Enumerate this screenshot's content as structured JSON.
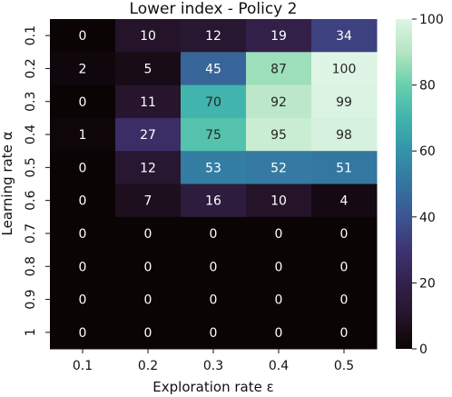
{
  "chart_data": {
    "type": "heatmap",
    "title": "Lower index - Policy 2",
    "xlabel": "Exploration rate ε",
    "ylabel": "Learning rate α",
    "x_categories": [
      "0.1",
      "0.2",
      "0.3",
      "0.4",
      "0.5"
    ],
    "y_categories": [
      "0.1",
      "0.2",
      "0.3",
      "0.4",
      "0.5",
      "0.6",
      "0.7",
      "0.8",
      "0.9",
      "1"
    ],
    "values": [
      [
        0,
        10,
        12,
        19,
        34
      ],
      [
        2,
        5,
        45,
        87,
        100
      ],
      [
        0,
        11,
        70,
        92,
        99
      ],
      [
        1,
        27,
        75,
        95,
        98
      ],
      [
        0,
        12,
        53,
        52,
        51
      ],
      [
        0,
        7,
        16,
        10,
        4
      ],
      [
        0,
        0,
        0,
        0,
        0
      ],
      [
        0,
        0,
        0,
        0,
        0
      ],
      [
        0,
        0,
        0,
        0,
        0
      ],
      [
        0,
        0,
        0,
        0,
        0
      ]
    ],
    "colorbar": {
      "range": [
        0,
        100
      ],
      "ticks": [
        "0",
        "20",
        "40",
        "60",
        "80",
        "100"
      ],
      "colormap": "mako"
    }
  }
}
